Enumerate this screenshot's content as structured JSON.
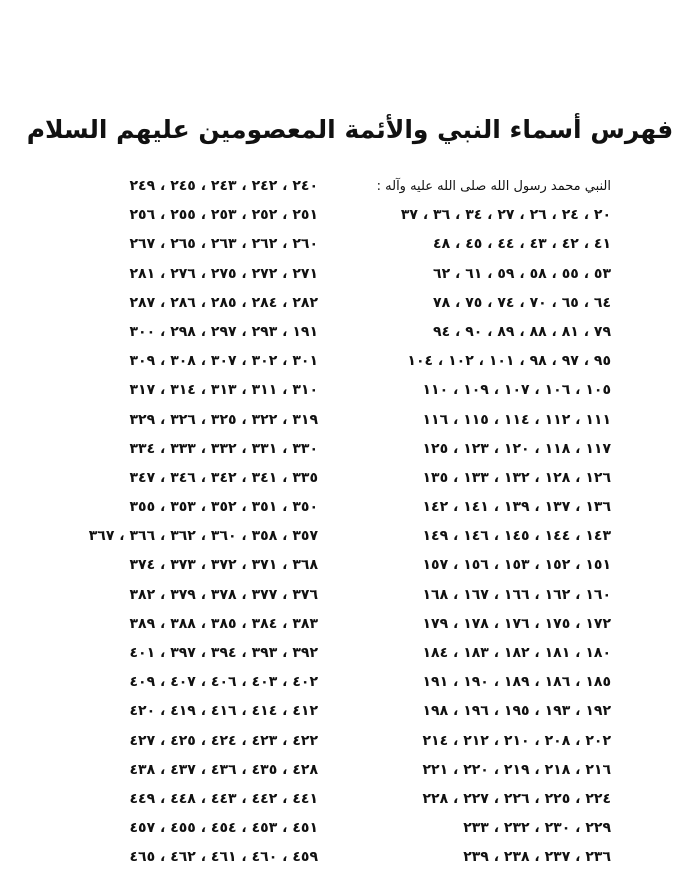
{
  "title": "فهرس أسماء النبي والأئمة المعصومين عليهم السلام",
  "right_column": {
    "heading": "النبي محمد رسول الله صلى الله عليه وآله :",
    "rows": [
      "٢٠ ، ٢٤ ، ٢٦ ، ٢٧ ، ٣٤ ، ٣٦ ، ٣٧",
      "٤١ ، ٤٢ ، ٤٣ ، ٤٤ ، ٤٥ ، ٤٨",
      "٥٣ ، ٥٥ ، ٥٨ ، ٥٩ ، ٦١ ، ٦٢",
      "٦٤ ، ٦٥ ، ٧٠ ، ٧٤ ، ٧٥ ، ٧٨",
      "٧٩ ، ٨١ ، ٨٨ ، ٨٩ ، ٩٠ ، ٩٤",
      "٩٥ ، ٩٧ ، ٩٨ ، ١٠١ ، ١٠٢ ، ١٠٤",
      "١٠٥ ، ١٠٦ ، ١٠٧ ، ١٠٩ ، ١١٠",
      "١١١ ، ١١٢ ، ١١٤ ، ١١٥ ، ١١٦",
      "١١٧ ، ١١٨ ، ١٢٠ ، ١٢٣ ، ١٢٥",
      "١٢٦ ، ١٢٨ ، ١٣٢ ، ١٣٣ ، ١٣٥",
      "١٣٦ ، ١٣٧ ، ١٣٩ ، ١٤١ ، ١٤٢",
      "١٤٣ ، ١٤٤ ، ١٤٥ ، ١٤٦ ، ١٤٩",
      "١٥١ ، ١٥٢ ، ١٥٣ ، ١٥٦ ، ١٥٧",
      "١٦٠ ، ١٦٢ ، ١٦٦ ، ١٦٧ ، ١٦٨",
      "١٧٢ ، ١٧٥ ، ١٧٦ ، ١٧٨ ، ١٧٩",
      "١٨٠ ، ١٨١ ، ١٨٢ ، ١٨٣ ، ١٨٤",
      "١٨٥ ، ١٨٦ ، ١٨٩ ، ١٩٠ ، ١٩١",
      "١٩٢ ، ١٩٣ ، ١٩٥ ، ١٩٦ ، ١٩٨",
      "٢٠٢ ، ٢٠٨ ، ٢١٠ ، ٢١٢ ، ٢١٤",
      "٢١٦ ، ٢١٨ ، ٢١٩ ، ٢٢٠ ، ٢٢١",
      "٢٢٤ ، ٢٢٥ ، ٢٢٦ ، ٢٢٧ ، ٢٢٨",
      "٢٢٩ ، ٢٣٠ ، ٢٣٢ ، ٢٣٣",
      "٢٣٦ ، ٢٣٧ ، ٢٣٨ ، ٢٣٩"
    ]
  },
  "left_column": {
    "rows": [
      "٢٤٠ ، ٢٤٢ ، ٢٤٣ ، ٢٤٥ ، ٢٤٩",
      "٢٥١ ، ٢٥٢ ، ٢٥٣ ، ٢٥٥ ، ٢٥٦",
      "٢٦٠ ، ٢٦٢ ، ٢٦٣ ، ٢٦٥ ، ٢٦٧",
      "٢٧١ ، ٢٧٢ ، ٢٧٥ ، ٢٧٦ ، ٢٨١",
      "٢٨٢ ، ٢٨٤ ، ٢٨٥ ، ٢٨٦ ، ٢٨٧",
      "١٩١ ، ٢٩٣ ، ٢٩٧ ، ٢٩٨ ، ٣٠٠",
      "٣٠١ ، ٣٠٢ ، ٣٠٧ ، ٣٠٨ ، ٣٠٩",
      "٣١٠ ، ٣١١ ، ٣١٣ ، ٣١٤ ، ٣١٧",
      "٣١٩ ، ٣٢٢ ، ٣٢٥ ، ٣٢٦ ، ٣٢٩",
      "٣٣٠ ، ٣٣١ ، ٣٣٢ ، ٣٣٣ ، ٣٣٤",
      "٣٣٥ ، ٣٤١ ، ٣٤٢ ، ٣٤٦ ، ٣٤٧",
      "٣٥٠ ، ٣٥١ ، ٣٥٢ ، ٣٥٣ ، ٣٥٥",
      "٣٥٧ ، ٣٥٨ ، ٣٦٠ ، ٣٦٢ ، ٣٦٦ ، ٣٦٧",
      "٣٦٨ ، ٣٧١ ، ٣٧٢ ، ٣٧٣ ، ٣٧٤",
      "٣٧٦ ، ٣٧٧ ، ٣٧٨ ، ٣٧٩ ، ٣٨٢",
      "٣٨٣ ، ٣٨٤ ، ٣٨٥ ، ٣٨٨ ، ٣٨٩",
      "٣٩٢ ، ٣٩٣ ، ٣٩٤ ، ٣٩٧ ، ٤٠١",
      "٤٠٢ ، ٤٠٣ ، ٤٠٦ ، ٤٠٧ ، ٤٠٩",
      "٤١٢ ، ٤١٤ ، ٤١٦ ، ٤١٩ ، ٤٢٠",
      "٤٢٢ ، ٤٢٣ ، ٤٢٤ ، ٤٢٥ ، ٤٢٧",
      "٤٢٨ ، ٤٣٥ ، ٤٣٦ ، ٤٣٧ ، ٤٣٨",
      "٤٤١ ، ٤٤٢ ، ٤٤٣ ، ٤٤٨ ، ٤٤٩",
      "٤٥١ ، ٤٥٣ ، ٤٥٤ ، ٤٥٥ ، ٤٥٧",
      "٤٥٩ ، ٤٦٠ ، ٤٦١ ، ٤٦٢ ، ٤٦٥"
    ]
  }
}
